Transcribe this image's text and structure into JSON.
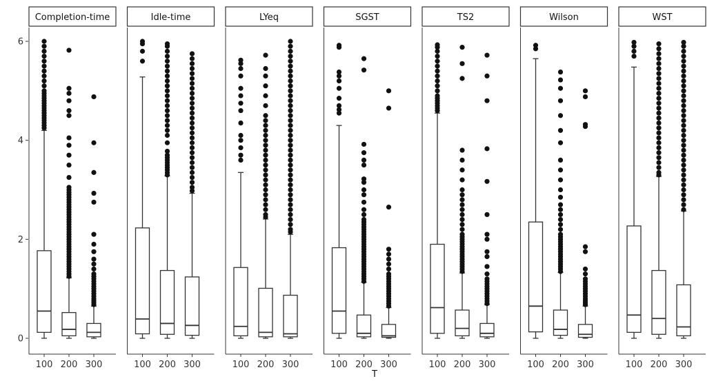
{
  "chart_data": {
    "type": "boxplot",
    "xlabel": "T",
    "ylabel": "",
    "ylim": [
      0,
      6
    ],
    "y_ticks": [
      "0",
      "2",
      "4",
      "6"
    ],
    "categories": [
      "100",
      "200",
      "300"
    ],
    "grid": false,
    "panels": [
      {
        "name": "Completion-time",
        "boxes": [
          {
            "x": "100",
            "whisker_low": 0.0,
            "q1": 0.12,
            "median": 0.55,
            "q3": 1.77,
            "whisker_high": 4.2,
            "outliers": [
              4.25,
              4.3,
              4.35,
              4.4,
              4.45,
              4.5,
              4.55,
              4.6,
              4.65,
              4.7,
              4.75,
              4.8,
              4.85,
              4.9,
              4.95,
              5.0,
              5.1,
              5.2,
              5.3,
              5.4,
              5.5,
              5.6,
              5.7,
              5.8,
              5.9,
              6.0
            ]
          },
          {
            "x": "200",
            "whisker_low": 0.0,
            "q1": 0.05,
            "median": 0.18,
            "q3": 0.52,
            "whisker_high": 1.22,
            "outliers": [
              1.25,
              1.3,
              1.35,
              1.4,
              1.45,
              1.5,
              1.55,
              1.6,
              1.65,
              1.7,
              1.75,
              1.8,
              1.85,
              1.9,
              1.95,
              2.0,
              2.05,
              2.1,
              2.15,
              2.2,
              2.25,
              2.3,
              2.35,
              2.4,
              2.45,
              2.5,
              2.55,
              2.6,
              2.65,
              2.7,
              2.75,
              2.8,
              2.85,
              2.9,
              2.95,
              3.0,
              3.05,
              3.25,
              3.5,
              3.7,
              3.9,
              4.05,
              4.5,
              4.6,
              4.8,
              4.95,
              5.05,
              5.82
            ]
          },
          {
            "x": "300",
            "whisker_low": 0.0,
            "q1": 0.03,
            "median": 0.12,
            "q3": 0.3,
            "whisker_high": 0.65,
            "outliers": [
              0.68,
              0.72,
              0.76,
              0.8,
              0.85,
              0.9,
              0.95,
              1.0,
              1.05,
              1.1,
              1.15,
              1.2,
              1.25,
              1.3,
              1.4,
              1.5,
              1.6,
              1.75,
              1.9,
              2.1,
              2.75,
              2.93,
              3.35,
              3.95,
              4.88
            ]
          }
        ]
      },
      {
        "name": "Idle-time",
        "boxes": [
          {
            "x": "100",
            "whisker_low": 0.0,
            "q1": 0.09,
            "median": 0.39,
            "q3": 2.23,
            "whisker_high": 5.28,
            "outliers": [
              5.6,
              5.8,
              5.95,
              6.0
            ]
          },
          {
            "x": "200",
            "whisker_low": 0.0,
            "q1": 0.08,
            "median": 0.3,
            "q3": 1.37,
            "whisker_high": 3.28,
            "outliers": [
              3.3,
              3.35,
              3.4,
              3.45,
              3.5,
              3.55,
              3.6,
              3.65,
              3.7,
              3.78,
              3.95,
              4.1,
              4.2,
              4.3,
              4.4,
              4.5,
              4.6,
              4.7,
              4.8,
              4.9,
              5.0,
              5.1,
              5.2,
              5.3,
              5.4,
              5.5,
              5.6,
              5.7,
              5.8,
              5.9,
              5.95
            ]
          },
          {
            "x": "300",
            "whisker_low": 0.0,
            "q1": 0.06,
            "median": 0.26,
            "q3": 1.24,
            "whisker_high": 2.93,
            "outliers": [
              2.98,
              3.05,
              3.15,
              3.25,
              3.35,
              3.45,
              3.55,
              3.65,
              3.75,
              3.85,
              3.95,
              4.05,
              4.15,
              4.25,
              4.35,
              4.45,
              4.55,
              4.65,
              4.75,
              4.85,
              4.95,
              5.05,
              5.15,
              5.25,
              5.35,
              5.45,
              5.55,
              5.65,
              5.75
            ]
          }
        ]
      },
      {
        "name": "LYeq",
        "boxes": [
          {
            "x": "100",
            "whisker_low": 0.0,
            "q1": 0.05,
            "median": 0.24,
            "q3": 1.43,
            "whisker_high": 3.35,
            "outliers": [
              3.6,
              3.7,
              3.85,
              4.0,
              4.1,
              4.35,
              4.6,
              4.75,
              4.9,
              5.05,
              5.3,
              5.45,
              5.55,
              5.62
            ]
          },
          {
            "x": "200",
            "whisker_low": 0.0,
            "q1": 0.03,
            "median": 0.12,
            "q3": 1.01,
            "whisker_high": 2.41,
            "outliers": [
              2.45,
              2.5,
              2.6,
              2.7,
              2.8,
              2.9,
              3.0,
              3.1,
              3.2,
              3.3,
              3.4,
              3.5,
              3.6,
              3.7,
              3.8,
              3.9,
              4.0,
              4.1,
              4.2,
              4.3,
              4.4,
              4.5,
              4.7,
              4.9,
              5.1,
              5.3,
              5.45,
              5.72
            ]
          },
          {
            "x": "300",
            "whisker_low": 0.0,
            "q1": 0.03,
            "median": 0.09,
            "q3": 0.87,
            "whisker_high": 2.1,
            "outliers": [
              2.15,
              2.2,
              2.3,
              2.4,
              2.5,
              2.6,
              2.7,
              2.8,
              2.9,
              3.0,
              3.1,
              3.2,
              3.3,
              3.4,
              3.5,
              3.6,
              3.7,
              3.8,
              3.9,
              4.0,
              4.1,
              4.2,
              4.3,
              4.4,
              4.5,
              4.6,
              4.7,
              4.8,
              4.9,
              5.0,
              5.1,
              5.2,
              5.3,
              5.4,
              5.5,
              5.6,
              5.7,
              5.8,
              5.9,
              6.0
            ]
          }
        ]
      },
      {
        "name": "SGST",
        "boxes": [
          {
            "x": "100",
            "whisker_low": 0.0,
            "q1": 0.1,
            "median": 0.55,
            "q3": 1.83,
            "whisker_high": 4.3,
            "outliers": [
              4.55,
              4.62,
              4.7,
              4.85,
              5.05,
              5.2,
              5.3,
              5.38,
              5.88,
              5.92
            ]
          },
          {
            "x": "200",
            "whisker_low": 0.0,
            "q1": 0.03,
            "median": 0.1,
            "q3": 0.47,
            "whisker_high": 1.13,
            "outliers": [
              1.15,
              1.2,
              1.25,
              1.3,
              1.35,
              1.4,
              1.45,
              1.5,
              1.55,
              1.6,
              1.65,
              1.7,
              1.75,
              1.8,
              1.85,
              1.9,
              1.95,
              2.0,
              2.05,
              2.1,
              2.15,
              2.2,
              2.25,
              2.3,
              2.35,
              2.4,
              2.5,
              2.6,
              2.75,
              2.9,
              3.0,
              3.15,
              3.22,
              3.5,
              3.6,
              3.75,
              3.92,
              5.42,
              5.65
            ]
          },
          {
            "x": "300",
            "whisker_low": 0.0,
            "q1": 0.02,
            "median": 0.05,
            "q3": 0.28,
            "whisker_high": 0.62,
            "outliers": [
              0.65,
              0.7,
              0.75,
              0.8,
              0.85,
              0.9,
              0.95,
              1.0,
              1.05,
              1.1,
              1.15,
              1.2,
              1.25,
              1.3,
              1.4,
              1.5,
              1.6,
              1.7,
              1.8,
              2.65,
              4.65,
              5.0
            ]
          }
        ]
      },
      {
        "name": "TS2",
        "boxes": [
          {
            "x": "100",
            "whisker_low": 0.0,
            "q1": 0.1,
            "median": 0.62,
            "q3": 1.9,
            "whisker_high": 4.55,
            "outliers": [
              4.6,
              4.65,
              4.7,
              4.75,
              4.8,
              4.85,
              4.9,
              5.0,
              5.1,
              5.2,
              5.3,
              5.4,
              5.5,
              5.6,
              5.7,
              5.8,
              5.88,
              5.93
            ]
          },
          {
            "x": "200",
            "whisker_low": 0.0,
            "q1": 0.05,
            "median": 0.2,
            "q3": 0.57,
            "whisker_high": 1.32,
            "outliers": [
              1.35,
              1.4,
              1.45,
              1.5,
              1.55,
              1.6,
              1.65,
              1.7,
              1.75,
              1.8,
              1.85,
              1.9,
              1.95,
              2.0,
              2.05,
              2.1,
              2.2,
              2.3,
              2.4,
              2.5,
              2.6,
              2.7,
              2.8,
              2.9,
              3.0,
              3.2,
              3.4,
              3.6,
              3.8,
              5.25,
              5.55,
              5.88
            ]
          },
          {
            "x": "300",
            "whisker_low": 0.0,
            "q1": 0.03,
            "median": 0.1,
            "q3": 0.3,
            "whisker_high": 0.68,
            "outliers": [
              0.7,
              0.75,
              0.8,
              0.85,
              0.9,
              0.95,
              1.0,
              1.05,
              1.1,
              1.15,
              1.2,
              1.3,
              1.45,
              1.65,
              1.75,
              2.0,
              2.1,
              2.5,
              3.17,
              3.83,
              4.8,
              5.3,
              5.72
            ]
          }
        ]
      },
      {
        "name": "Wilson",
        "boxes": [
          {
            "x": "100",
            "whisker_low": 0.0,
            "q1": 0.13,
            "median": 0.65,
            "q3": 2.35,
            "whisker_high": 5.65,
            "outliers": [
              5.85,
              5.92
            ]
          },
          {
            "x": "200",
            "whisker_low": 0.0,
            "q1": 0.06,
            "median": 0.18,
            "q3": 0.57,
            "whisker_high": 1.33,
            "outliers": [
              1.35,
              1.4,
              1.45,
              1.5,
              1.55,
              1.6,
              1.65,
              1.7,
              1.75,
              1.8,
              1.85,
              1.9,
              1.95,
              2.0,
              2.05,
              2.1,
              2.2,
              2.3,
              2.4,
              2.5,
              2.6,
              2.7,
              2.85,
              3.0,
              3.2,
              3.4,
              3.6,
              3.95,
              4.2,
              4.5,
              4.8,
              5.05,
              5.22,
              5.38
            ]
          },
          {
            "x": "300",
            "whisker_low": 0.0,
            "q1": 0.02,
            "median": 0.08,
            "q3": 0.28,
            "whisker_high": 0.65,
            "outliers": [
              0.68,
              0.72,
              0.76,
              0.8,
              0.85,
              0.9,
              0.95,
              1.0,
              1.05,
              1.1,
              1.15,
              1.2,
              1.3,
              1.4,
              1.75,
              1.85,
              4.28,
              4.32,
              4.88,
              5.0
            ]
          }
        ]
      },
      {
        "name": "WST",
        "boxes": [
          {
            "x": "100",
            "whisker_low": 0.0,
            "q1": 0.12,
            "median": 0.47,
            "q3": 2.27,
            "whisker_high": 5.48,
            "outliers": [
              5.7,
              5.8,
              5.9,
              5.98
            ]
          },
          {
            "x": "200",
            "whisker_low": 0.0,
            "q1": 0.08,
            "median": 0.4,
            "q3": 1.37,
            "whisker_high": 3.27,
            "outliers": [
              3.3,
              3.35,
              3.45,
              3.55,
              3.65,
              3.75,
              3.85,
              3.95,
              4.05,
              4.15,
              4.25,
              4.35,
              4.45,
              4.55,
              4.65,
              4.75,
              4.85,
              4.95,
              5.05,
              5.15,
              5.25,
              5.35,
              5.45,
              5.55,
              5.65,
              5.75,
              5.85,
              5.95
            ]
          },
          {
            "x": "300",
            "whisker_low": 0.0,
            "q1": 0.05,
            "median": 0.23,
            "q3": 1.08,
            "whisker_high": 2.57,
            "outliers": [
              2.6,
              2.7,
              2.8,
              2.9,
              3.0,
              3.1,
              3.2,
              3.3,
              3.4,
              3.5,
              3.6,
              3.7,
              3.8,
              3.9,
              4.0,
              4.1,
              4.2,
              4.3,
              4.4,
              4.5,
              4.6,
              4.7,
              4.8,
              4.9,
              5.0,
              5.1,
              5.2,
              5.3,
              5.4,
              5.5,
              5.6,
              5.7,
              5.8,
              5.9,
              5.98
            ]
          }
        ]
      }
    ]
  }
}
